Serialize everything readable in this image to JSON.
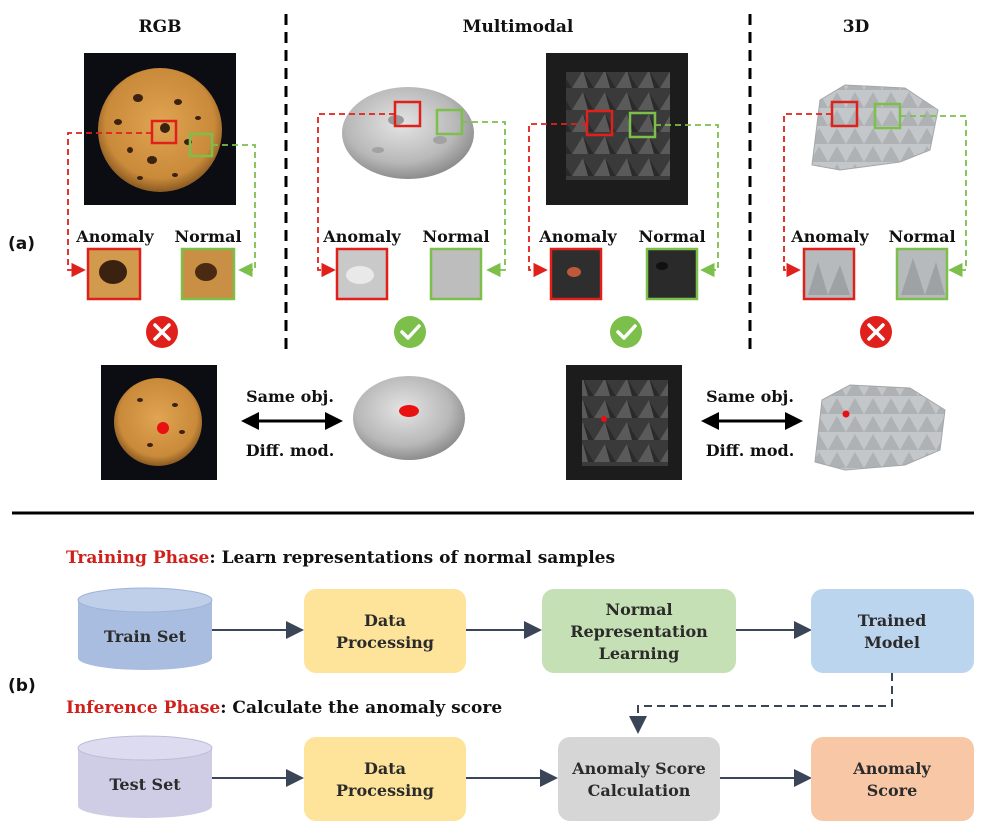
{
  "panel_a": {
    "tag": "(a)",
    "headers": {
      "rgb": "RGB",
      "multimodal": "Multimodal",
      "three_d": "3D"
    },
    "patch_labels": {
      "anomaly": "Anomaly",
      "normal": "Normal"
    },
    "results": [
      "fail",
      "pass",
      "pass",
      "fail"
    ],
    "arrow_top": "Same obj.",
    "arrow_bottom": "Diff. mod.",
    "colors": {
      "anomaly": "#e0201b",
      "normal": "#7cbf4a",
      "fail": "#e0201b",
      "pass": "#7cbf4a"
    }
  },
  "panel_b": {
    "tag": "(b)",
    "training": {
      "phase": "Training Phase",
      "desc": ": Learn representations of normal samples",
      "nodes": {
        "train_set": "Train Set",
        "data_processing_1": "Data",
        "data_processing_2": "Processing",
        "nrl_1": "Normal",
        "nrl_2": "Representation",
        "nrl_3": "Learning",
        "trained_1": "Trained",
        "trained_2": "Model"
      }
    },
    "inference": {
      "phase": "Inference Phase",
      "desc": ": Calculate the anomaly score",
      "nodes": {
        "test_set": "Test Set",
        "data_processing_1": "Data",
        "data_processing_2": "Processing",
        "calc_1": "Anomaly Score",
        "calc_2": "Calculation",
        "score_1": "Anomaly",
        "score_2": "Score"
      }
    },
    "colors": {
      "phase": "#d0201b",
      "train_db": "#a9bde0",
      "test_db": "#cfcde6",
      "processing": "#fde49a",
      "learning": "#c5e0b4",
      "model": "#bcd5ee",
      "calc": "#d6d6d6",
      "score": "#f7c7a6",
      "arrow": "#3a4658"
    }
  }
}
